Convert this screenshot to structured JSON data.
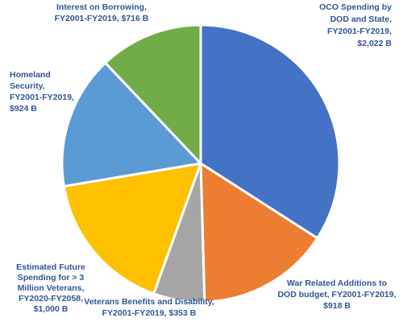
{
  "chart_data": {
    "type": "pie",
    "unit": "B",
    "slices": [
      {
        "key": "oco",
        "lines": [
          "OCO Spending by",
          "DOD and State,",
          "FY2001-FY2019,",
          "$2,022 B"
        ],
        "value": 2022,
        "color": "#4472C4"
      },
      {
        "key": "war-additions",
        "lines": [
          "War Related Additions to",
          "DOD budget, FY2001-FY2019,",
          "$918 B"
        ],
        "value": 918,
        "color": "#ED7D31"
      },
      {
        "key": "veterans-benefits",
        "lines": [
          "Veterans Benefits and Disability,",
          "FY2001-FY2019,  $353 B"
        ],
        "value": 353,
        "color": "#A5A5A5"
      },
      {
        "key": "future-veterans",
        "lines": [
          "Estimated Future",
          "Spending for > 3",
          "Million Veterans,",
          "FY2020-FY2058,",
          "$1,000 B"
        ],
        "value": 1000,
        "color": "#FFC000"
      },
      {
        "key": "homeland-security",
        "lines": [
          "Homeland",
          "Security,",
          "FY2001-FY2019,",
          "$924 B"
        ],
        "value": 924,
        "color": "#5B9BD5"
      },
      {
        "key": "interest",
        "lines": [
          "Interest on Borrowing,",
          "FY2001-FY2019,  $716 B"
        ],
        "value": 716,
        "color": "#70AD47"
      }
    ],
    "label_color": "#2F5597",
    "legend": "none"
  }
}
